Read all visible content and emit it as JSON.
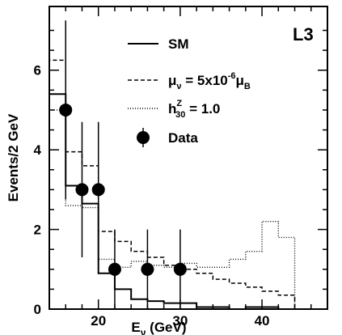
{
  "chart_data": {
    "type": "histogram",
    "experiment_label": "L3",
    "xlabel": "E",
    "xlabel_subscript": "ν",
    "xlabel_unit": " (GeV)",
    "ylabel": "Events/2 GeV",
    "xlim": [
      14,
      48
    ],
    "ylim": [
      0,
      7.6
    ],
    "x_ticks": [
      20,
      30,
      40
    ],
    "y_ticks": [
      0,
      2,
      4,
      6
    ],
    "bin_edges": [
      14,
      16,
      18,
      20,
      22,
      24,
      26,
      28,
      30,
      32,
      34,
      36,
      38,
      40,
      42,
      44,
      46
    ],
    "series": [
      {
        "name": "SM",
        "style": "solid",
        "values": [
          5.4,
          3.1,
          2.65,
          0.9,
          0.5,
          0.25,
          0.2,
          0.15,
          0.15,
          0.05,
          0.05,
          0.0,
          0.05,
          0.05,
          0.0,
          0.0
        ]
      },
      {
        "name_parts": [
          "μ",
          "ν",
          " = 5x10",
          "-6",
          "μ",
          "B"
        ],
        "style": "dashed",
        "values": [
          6.25,
          3.95,
          3.6,
          1.95,
          1.7,
          1.45,
          1.3,
          1.1,
          1.0,
          0.9,
          0.75,
          0.65,
          0.55,
          0.45,
          0.35,
          0.0
        ]
      },
      {
        "name_parts": [
          "h",
          "Z",
          "30",
          " = 1.0"
        ],
        "style": "dotted",
        "values": [
          5.0,
          2.6,
          2.55,
          1.25,
          1.05,
          1.2,
          1.1,
          1.05,
          1.15,
          1.05,
          1.05,
          1.25,
          1.45,
          2.2,
          1.8,
          0.0
        ]
      }
    ],
    "data_points": {
      "name": "Data",
      "x": [
        16,
        18,
        20,
        22,
        26,
        30
      ],
      "y": [
        5,
        3,
        3,
        1,
        1,
        1
      ],
      "err": [
        2.25,
        1.7,
        1.7,
        1.0,
        1.0,
        1.0
      ]
    },
    "colors": {
      "axes": "#000000",
      "background": "#ffffff"
    }
  }
}
